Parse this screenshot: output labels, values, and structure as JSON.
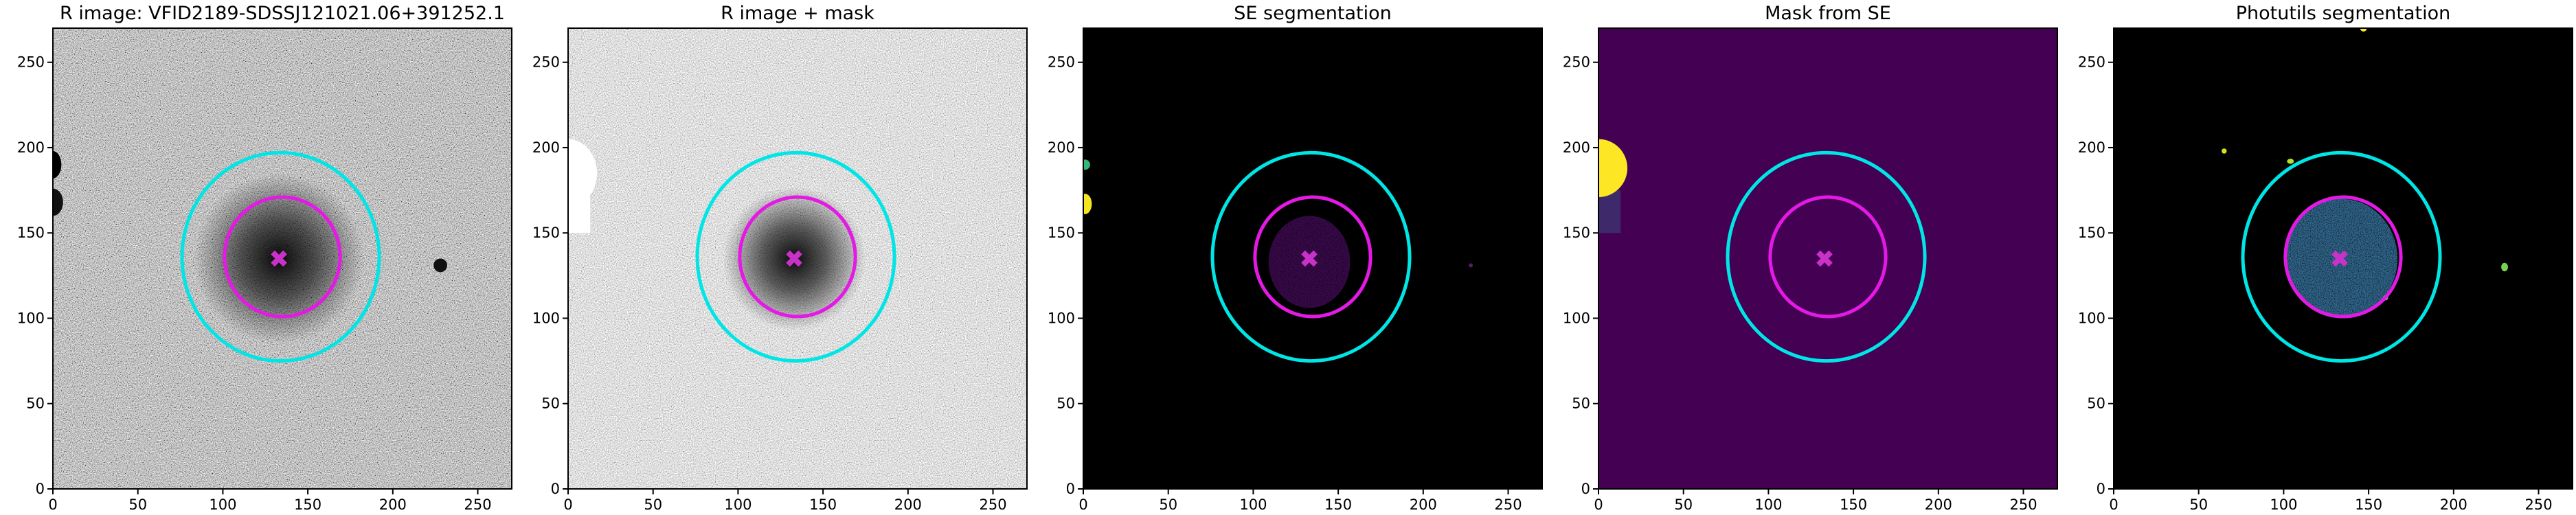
{
  "chart_data": [
    {
      "type": "image",
      "title": "R image: VFID2189-SDSSJ121021.06+391252.1",
      "xlim": [
        0,
        270
      ],
      "ylim": [
        0,
        270
      ],
      "xticks": [
        0,
        50,
        100,
        150,
        200,
        250
      ],
      "yticks": [
        0,
        50,
        100,
        150,
        200,
        250
      ],
      "ellipses": [
        {
          "color": "#00e5e5",
          "center": [
            134,
            136
          ],
          "width": 116,
          "height": 122
        },
        {
          "color": "#e519e5",
          "center": [
            135,
            136
          ],
          "width": 68,
          "height": 70
        }
      ],
      "marker": {
        "color": "#c832c8",
        "x": 133,
        "y": 135
      }
    },
    {
      "type": "image",
      "title": "R image + mask",
      "xlim": [
        0,
        270
      ],
      "ylim": [
        0,
        270
      ],
      "xticks": [
        0,
        50,
        100,
        150,
        200,
        250
      ],
      "yticks": [
        0,
        50,
        100,
        150,
        200,
        250
      ],
      "ellipses": [
        {
          "color": "#00e5e5",
          "center": [
            134,
            136
          ],
          "width": 116,
          "height": 122
        },
        {
          "color": "#e519e5",
          "center": [
            135,
            136
          ],
          "width": 68,
          "height": 70
        }
      ],
      "marker": {
        "color": "#c832c8",
        "x": 133,
        "y": 135
      }
    },
    {
      "type": "image",
      "title": "SE segmentation",
      "xlim": [
        0,
        270
      ],
      "ylim": [
        0,
        270
      ],
      "xticks": [
        0,
        50,
        100,
        150,
        200,
        250
      ],
      "yticks": [
        0,
        50,
        100,
        150,
        200,
        250
      ],
      "ellipses": [
        {
          "color": "#00e5e5",
          "center": [
            134,
            136
          ],
          "width": 116,
          "height": 122
        },
        {
          "color": "#e519e5",
          "center": [
            135,
            136
          ],
          "width": 68,
          "height": 70
        }
      ],
      "marker": {
        "color": "#c832c8",
        "x": 133,
        "y": 135
      }
    },
    {
      "type": "image",
      "title": "Mask from SE",
      "xlim": [
        0,
        270
      ],
      "ylim": [
        0,
        270
      ],
      "xticks": [
        0,
        50,
        100,
        150,
        200,
        250
      ],
      "yticks": [
        0,
        50,
        100,
        150,
        200,
        250
      ],
      "ellipses": [
        {
          "color": "#00e5e5",
          "center": [
            134,
            136
          ],
          "width": 116,
          "height": 122
        },
        {
          "color": "#e519e5",
          "center": [
            135,
            136
          ],
          "width": 68,
          "height": 70
        }
      ],
      "marker": {
        "color": "#c832c8",
        "x": 133,
        "y": 135
      }
    },
    {
      "type": "image",
      "title": "Photutils segmentation",
      "xlim": [
        0,
        270
      ],
      "ylim": [
        0,
        270
      ],
      "xticks": [
        0,
        50,
        100,
        150,
        200,
        250
      ],
      "yticks": [
        0,
        50,
        100,
        150,
        200,
        250
      ],
      "ellipses": [
        {
          "color": "#00e5e5",
          "center": [
            134,
            136
          ],
          "width": 116,
          "height": 122
        },
        {
          "color": "#e519e5",
          "center": [
            135,
            136
          ],
          "width": 68,
          "height": 70
        }
      ],
      "marker": {
        "color": "#c832c8",
        "x": 133,
        "y": 135
      }
    }
  ]
}
